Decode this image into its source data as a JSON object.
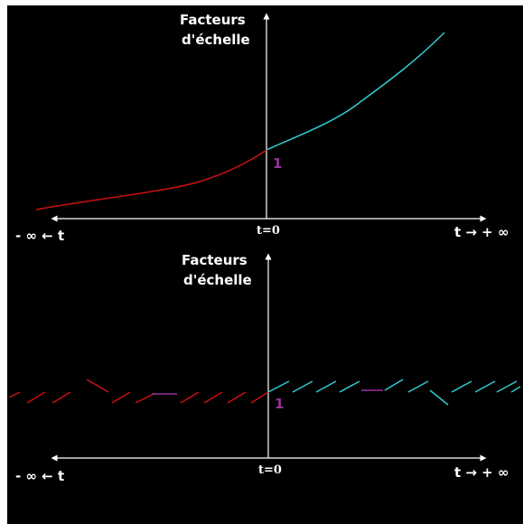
{
  "colors": {
    "background": "#000000",
    "axis": "#ffffff",
    "past": "#cc1111",
    "future": "#33cccc",
    "marker": "#993399"
  },
  "top_panel": {
    "y_label_line1": "Facteurs",
    "y_label_line2": "d'échelle",
    "origin_label": "t=0",
    "left_label": "- ∞ ← t",
    "right_label": "t → + ∞",
    "unit_label": "1"
  },
  "bottom_panel": {
    "y_label_line1": "Facteurs",
    "y_label_line2": "d'échelle",
    "origin_label": "t=0",
    "left_label": "- ∞ ← t",
    "right_label": "t → + ∞",
    "unit_label": "1"
  }
}
